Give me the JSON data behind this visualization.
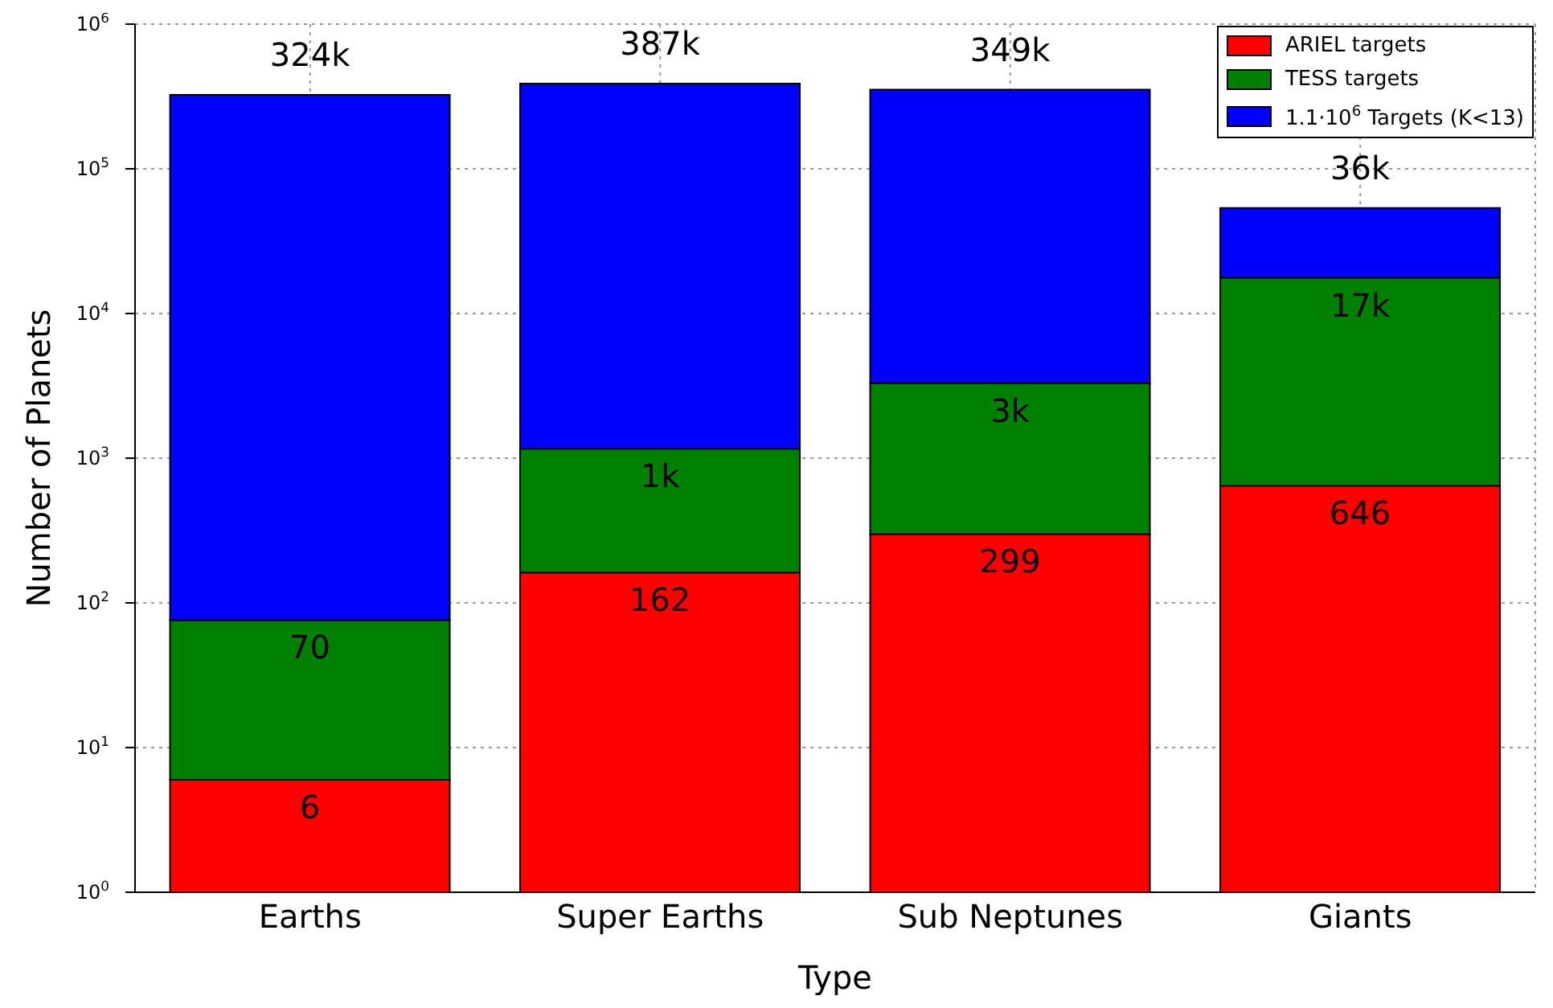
{
  "chart_data": {
    "type": "bar",
    "stacked": true,
    "log": "y",
    "xlabel": "Type",
    "ylabel": "Number of Planets",
    "categories": [
      "Earths",
      "Super Earths",
      "Sub Neptunes",
      "Giants"
    ],
    "series": [
      {
        "name": "ARIEL targets",
        "color": "#ff0000",
        "values": [
          6,
          162,
          299,
          646
        ]
      },
      {
        "name": "TESS targets",
        "color": "#008000",
        "values": [
          70,
          1000,
          3000,
          17000
        ],
        "value_labels": [
          "70",
          "1k",
          "3k",
          "17k"
        ]
      },
      {
        "name": "1.1·10$^{6}$ Targets (K<13)",
        "color": "#0000ff",
        "values": [
          324000,
          387000,
          349000,
          36000
        ],
        "value_labels": [
          "324k",
          "387k",
          "349k",
          "36k"
        ]
      }
    ],
    "data_labels": true,
    "ylim": [
      1,
      1000000
    ],
    "yticks": [
      {
        "value": 1,
        "label": "10$^{0}$"
      },
      {
        "value": 10,
        "label": "10$^{1}$"
      },
      {
        "value": 100,
        "label": "10$^{2}$"
      },
      {
        "value": 1000,
        "label": "10$^{3}$"
      },
      {
        "value": 10000,
        "label": "10$^{4}$"
      },
      {
        "value": 100000,
        "label": "10$^{5}$"
      },
      {
        "value": 1000000,
        "label": "10$^{6}$"
      }
    ],
    "grid": true,
    "legend": "top right"
  }
}
